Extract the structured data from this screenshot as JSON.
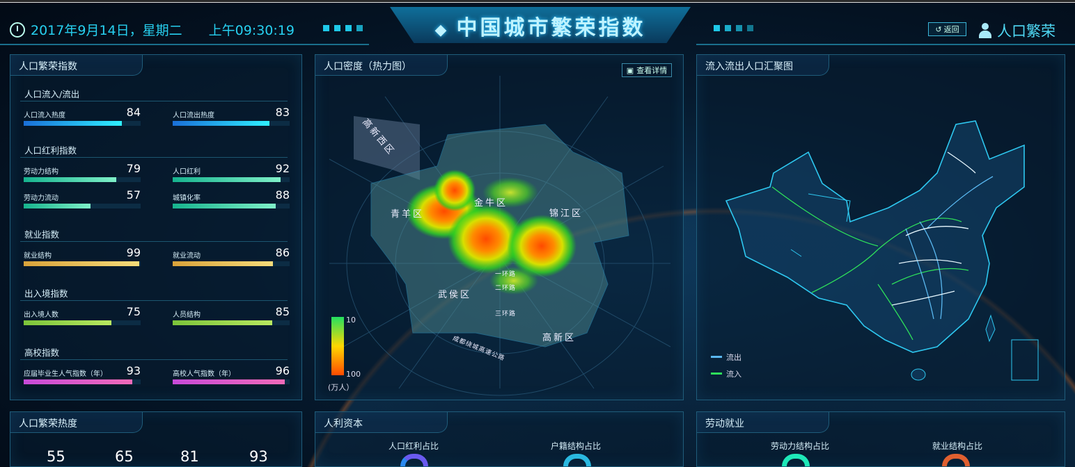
{
  "header": {
    "date": "2017年9月14日，星期二",
    "time": "上午09:30:19",
    "title": "中国城市繁荣指数",
    "back_label": "返回",
    "user_label": "人口繁荣",
    "icons": {
      "clock": "clock-icon",
      "china": "china-map-icon",
      "back": "return-icon",
      "user": "user-icon"
    }
  },
  "colors": {
    "accent": "#27d0f0",
    "inflow": "#2ee05a",
    "outflow": "#5ab8f0"
  },
  "index_panel": {
    "title": "人口繁荣指数",
    "groups": [
      {
        "title": "人口流入/流出",
        "metrics": [
          {
            "label": "人口流入热度",
            "value": 84
          },
          {
            "label": "人口流出热度",
            "value": 83
          }
        ]
      },
      {
        "title": "人口红利指数",
        "metrics": [
          {
            "label": "劳动力结构",
            "value": 79
          },
          {
            "label": "人口红利",
            "value": 92
          },
          {
            "label": "劳动力流动",
            "value": 57
          },
          {
            "label": "城镇化率",
            "value": 88
          }
        ]
      },
      {
        "title": "就业指数",
        "metrics": [
          {
            "label": "就业结构",
            "value": 99
          },
          {
            "label": "就业流动",
            "value": 86
          }
        ]
      },
      {
        "title": "出入境指数",
        "metrics": [
          {
            "label": "出入境人数",
            "value": 75
          },
          {
            "label": "人员结构",
            "value": 85
          }
        ]
      },
      {
        "title": "高校指数",
        "metrics": [
          {
            "label": "应届毕业生人气指数（年）",
            "value": 93
          },
          {
            "label": "高校人气指数（年）",
            "value": 96
          }
        ]
      }
    ]
  },
  "heatmap_panel": {
    "title": "人口密度（热力图）",
    "detail_label": "查看详情",
    "districts": [
      "高新西区",
      "青羊区",
      "金牛区",
      "锦江区",
      "武侯区",
      "高新区"
    ],
    "roads": [
      "一环路",
      "二环路",
      "三环路",
      "成都绕城高速公路"
    ],
    "legend": {
      "min": "10",
      "max": "100",
      "unit": "(万人）"
    }
  },
  "flow_panel": {
    "title": "流入流出人口汇聚图",
    "legend": [
      {
        "label": "流出",
        "color": "#5ab8f0"
      },
      {
        "label": "流入",
        "color": "#2ee05a"
      }
    ]
  },
  "heat_panel": {
    "title": "人口繁荣热度",
    "values": [
      "55",
      "65",
      "81",
      "93"
    ]
  },
  "capital_panel": {
    "title": "人利资本",
    "charts": [
      "人口红利占比",
      "户籍结构占比"
    ]
  },
  "labor_panel": {
    "title": "劳动就业",
    "charts": [
      "劳动力结构占比",
      "就业结构占比"
    ]
  }
}
